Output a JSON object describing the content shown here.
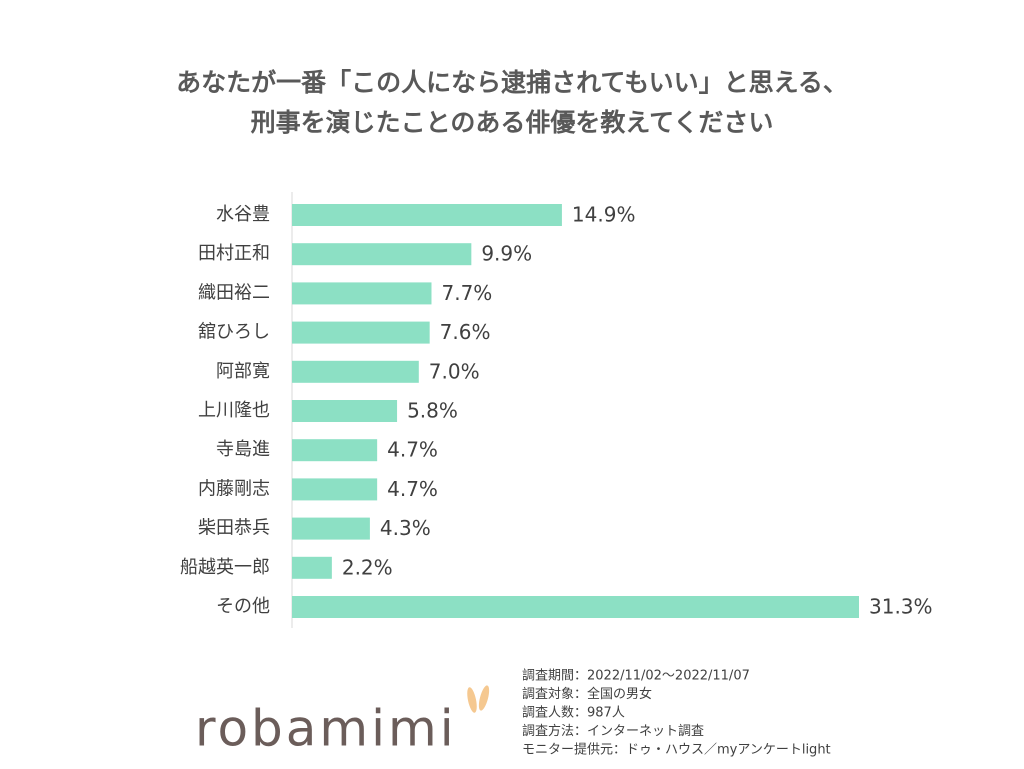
{
  "chart_data": {
    "type": "bar",
    "orientation": "horizontal",
    "title": [
      "あなたが一番「この人になら逮捕されてもいい」と思える、",
      "刑事を演じたことのある俳優を教えてください"
    ],
    "categories": [
      "水谷豊",
      "田村正和",
      "織田裕二",
      "舘ひろし",
      "阿部寛",
      "上川隆也",
      "寺島進",
      "内藤剛志",
      "柴田恭兵",
      "船越英一郎",
      "その他"
    ],
    "values": [
      14.9,
      9.9,
      7.7,
      7.6,
      7.0,
      5.8,
      4.7,
      4.7,
      4.3,
      2.2,
      31.3
    ],
    "value_labels": [
      "14.9%",
      "9.9%",
      "7.7%",
      "7.6%",
      "7.0%",
      "5.8%",
      "4.7%",
      "4.7%",
      "4.3%",
      "2.2%",
      "31.3%"
    ],
    "color": "#8ce0c4"
  },
  "footer": {
    "notes": [
      "調査期間：2022/11/02～2022/11/07",
      "調査対象：全国の男女",
      "調査人数：987人",
      "調査方法：インターネット調査",
      "モニター提供元：ドゥ・ハウス／myアンケートlight"
    ],
    "logo": "robamimi"
  }
}
